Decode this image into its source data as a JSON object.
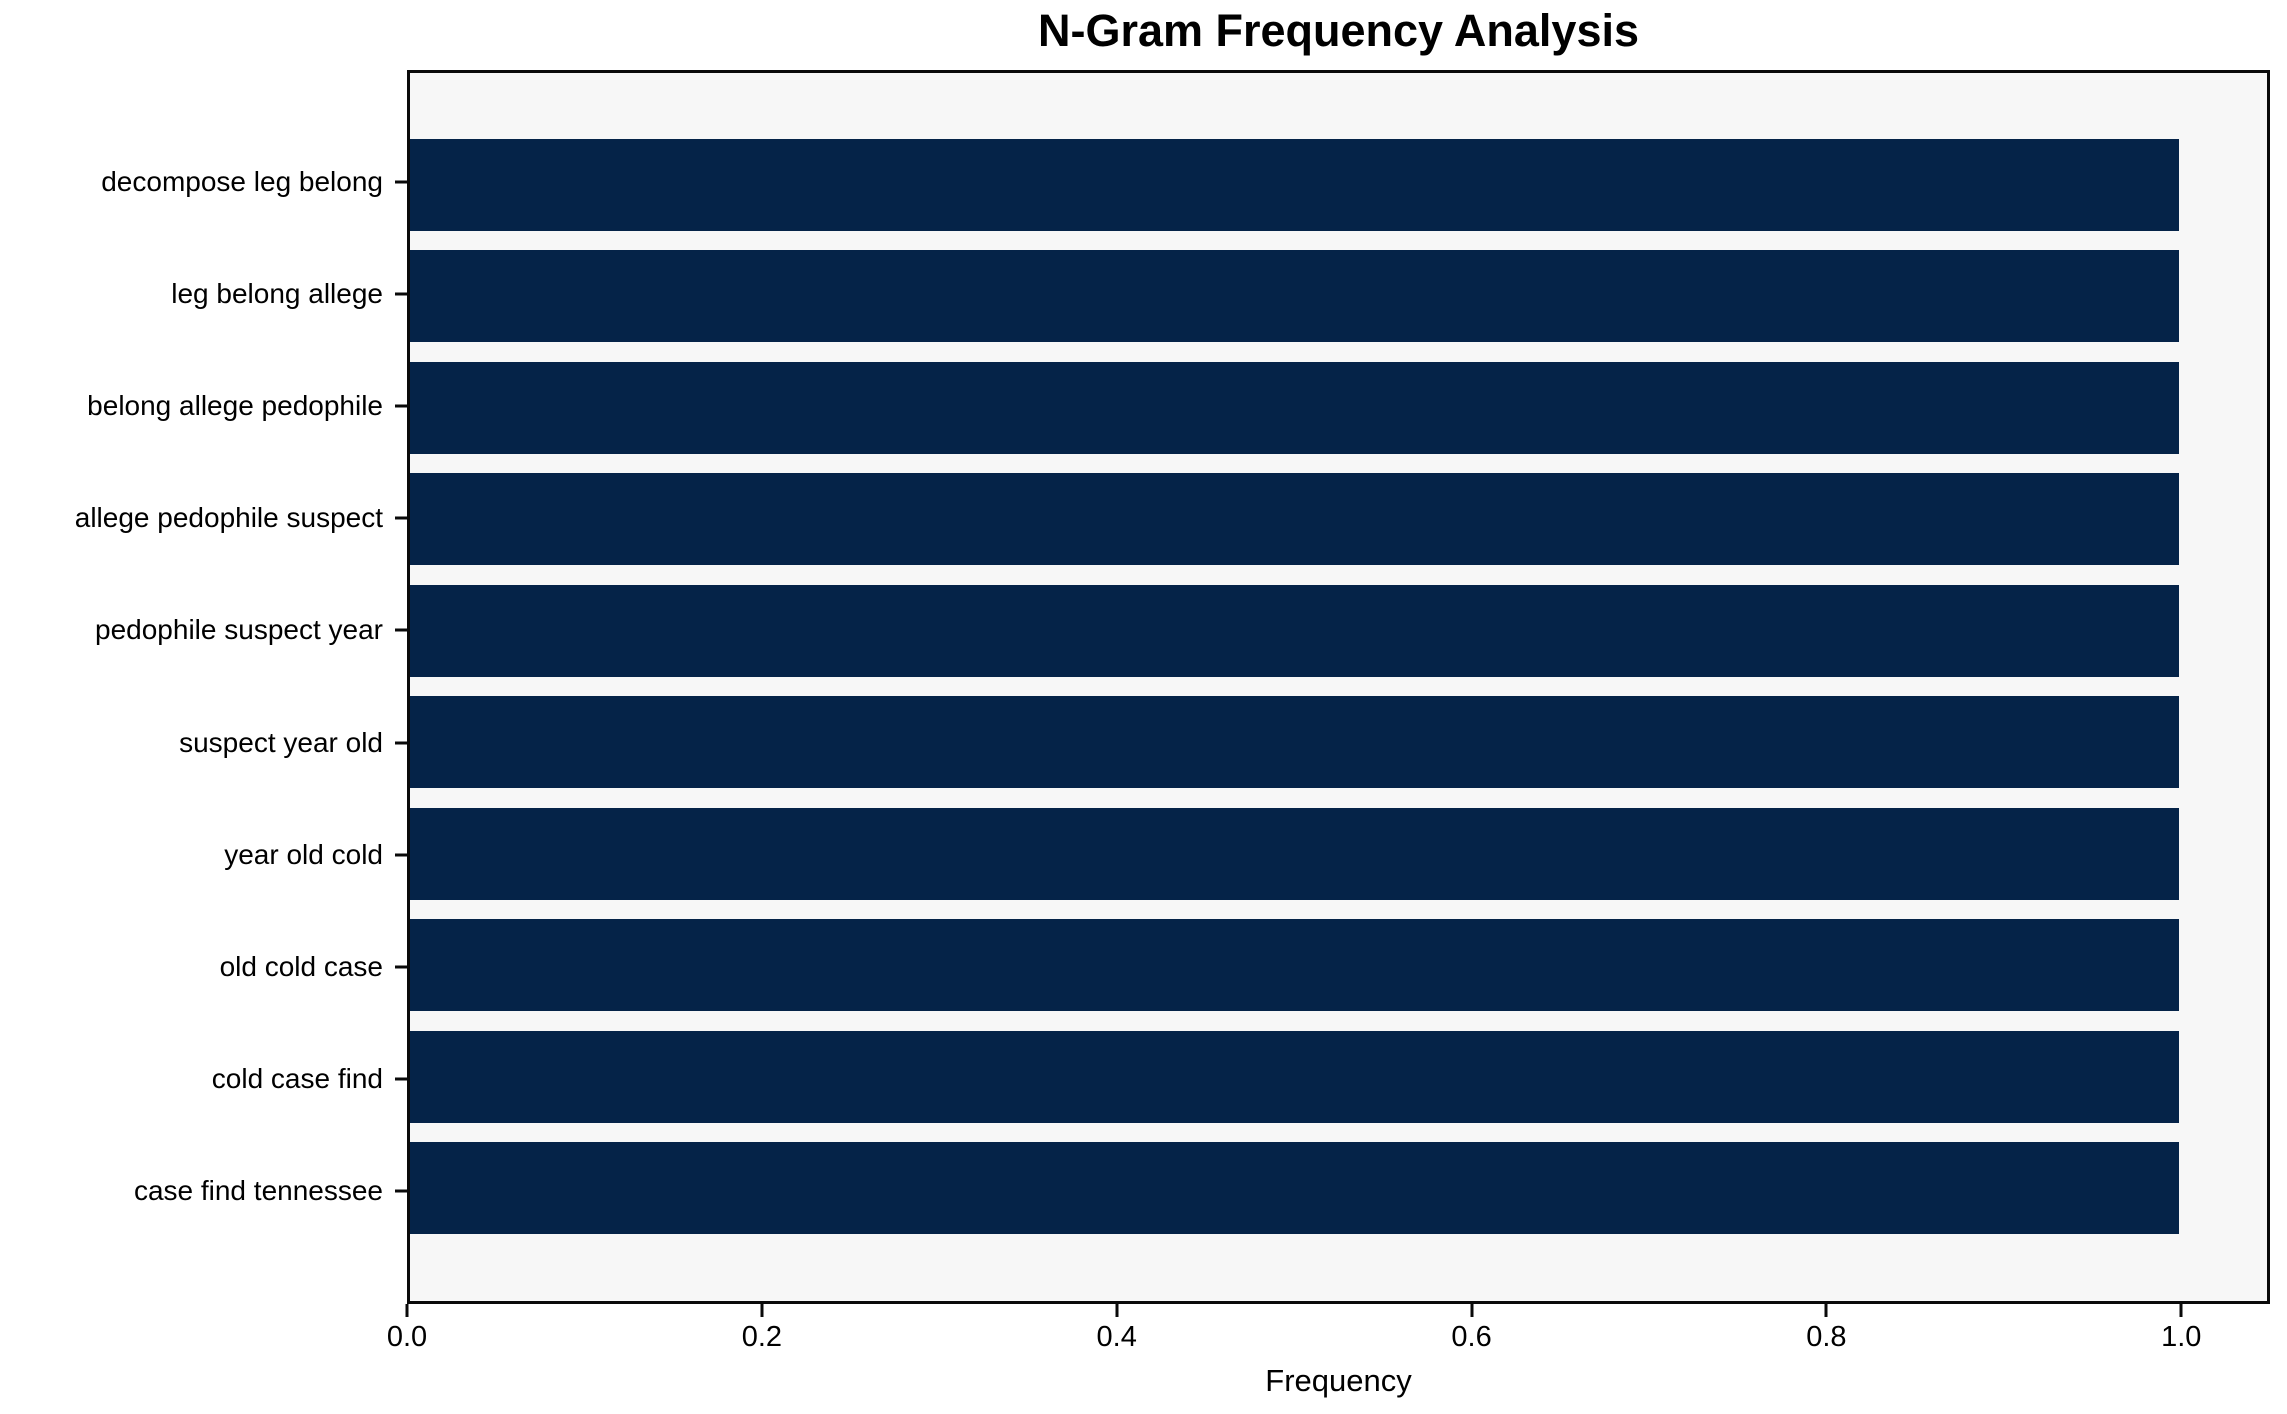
{
  "chart_data": {
    "type": "bar",
    "orientation": "horizontal",
    "title": "N-Gram Frequency Analysis",
    "xlabel": "Frequency",
    "ylabel": "",
    "categories": [
      "decompose leg belong",
      "leg belong allege",
      "belong allege pedophile",
      "allege pedophile suspect",
      "pedophile suspect year",
      "suspect year old",
      "year old cold",
      "old cold case",
      "cold case find",
      "case find tennessee"
    ],
    "values": [
      1.0,
      1.0,
      1.0,
      1.0,
      1.0,
      1.0,
      1.0,
      1.0,
      1.0,
      1.0
    ],
    "xlim": [
      0.0,
      1.05
    ],
    "x_tick_values": [
      0.0,
      0.2,
      0.4,
      0.6,
      0.8,
      1.0
    ],
    "x_tick_labels": [
      "0.0",
      "0.2",
      "0.4",
      "0.6",
      "0.8",
      "1.0"
    ],
    "grid": false,
    "legend": false,
    "colors": {
      "bar": "#052348",
      "plot_background": "#f7f7f7",
      "figure_background": "#ffffff",
      "spine": "#0a0a0a",
      "text": "#000000"
    }
  }
}
